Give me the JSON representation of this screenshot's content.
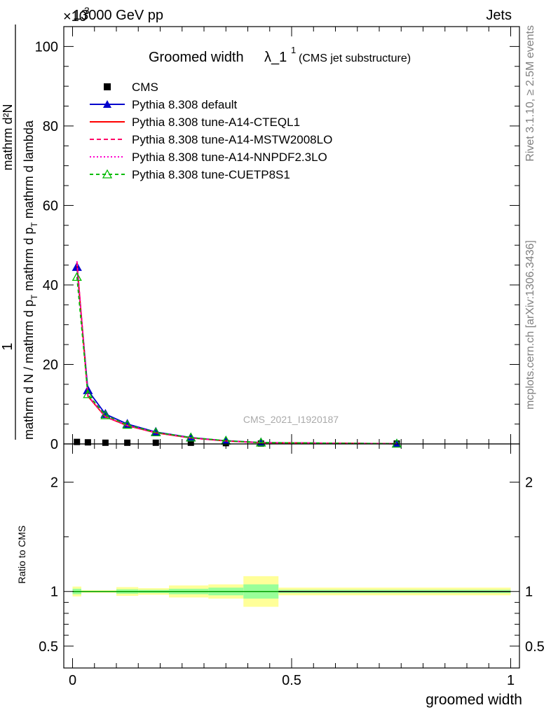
{
  "header": {
    "left": "13000 GeV pp",
    "right": "Jets",
    "exponent": "×10",
    "exponent_power": "3"
  },
  "side_labels": {
    "rivet": "Rivet 3.1.10, ≥ 2.5M events",
    "mcplots": "mcplots.cern.ch [arXiv:1306.3436]"
  },
  "watermark": "CMS_2021_I1920187",
  "colors": {
    "cms": "#000000",
    "default": "#0000cc",
    "cteql1": "#ff0000",
    "mstw": "#ff0066",
    "nnpdf": "#ff00cc",
    "cuetp8s1": "#00bb00",
    "band_inner": "#99ff99",
    "band_outer": "#ffff99"
  },
  "chart_data": [
    {
      "type": "line",
      "title": "Groomed width",
      "title_symbol": "λ_1",
      "title_sup": "1",
      "title_suffix": "(CMS jet substructure)",
      "ylabel_top": "1",
      "ylabel_num": "mathrm d²N",
      "ylabel_den_main": "mathrm d N / mathrm d p",
      "ylabel_den_sub": "T",
      "ylabel_den_rest": " mathrm d p",
      "ylabel_den_sub2": "T",
      "ylabel_den_end": " mathrm d lambda",
      "xlim": [
        -0.02,
        1.02
      ],
      "ylim": [
        0,
        105
      ],
      "y_ticks": [
        0,
        20,
        40,
        60,
        80,
        100
      ],
      "y_tick_labels": [
        "0",
        "20",
        "40",
        "60",
        "80",
        "100"
      ],
      "legend_position": "top-left",
      "x": [
        0.01,
        0.035,
        0.075,
        0.125,
        0.19,
        0.27,
        0.35,
        0.43,
        0.74
      ],
      "series": [
        {
          "name": "CMS",
          "key": "cms",
          "style": "square",
          "values": [
            0.5,
            0.4,
            0.3,
            0.3,
            0.3,
            0.3,
            0.2,
            0.1,
            0.1
          ]
        },
        {
          "name": "Pythia 8.308 default",
          "key": "default",
          "style": "triangle",
          "values": [
            44.5,
            13.5,
            7.5,
            5.0,
            3.0,
            1.6,
            0.8,
            0.35,
            0.05
          ]
        },
        {
          "name": "Pythia 8.308 tune-A14-CTEQL1",
          "key": "cteql1",
          "style": "solid",
          "values": [
            45.5,
            12.0,
            6.8,
            4.6,
            2.8,
            1.5,
            0.75,
            0.3,
            0.05
          ]
        },
        {
          "name": "Pythia 8.308 tune-A14-MSTW2008LO",
          "key": "mstw",
          "style": "dashed",
          "values": [
            45.8,
            12.1,
            6.9,
            4.6,
            2.8,
            1.5,
            0.75,
            0.3,
            0.05
          ]
        },
        {
          "name": "Pythia 8.308 tune-A14-NNPDF2.3LO",
          "key": "nnpdf",
          "style": "dotted",
          "values": [
            46.0,
            12.2,
            6.9,
            4.7,
            2.9,
            1.5,
            0.75,
            0.3,
            0.05
          ]
        },
        {
          "name": "Pythia 8.308 tune-CUETP8S1",
          "key": "cuetp8s1",
          "style": "dashed-open-triangle",
          "values": [
            42.0,
            12.5,
            7.2,
            4.8,
            2.9,
            1.6,
            0.8,
            0.33,
            0.05
          ]
        }
      ]
    },
    {
      "type": "area",
      "ylabel": "Ratio to CMS",
      "xlabel": "groomed width",
      "xlim": [
        -0.02,
        1.02
      ],
      "ylim": [
        0.3,
        2.35
      ],
      "y_ticks": [
        0.5,
        1,
        2
      ],
      "y_tick_labels": [
        "0.5",
        "1",
        "2"
      ],
      "x_ticks": [
        0,
        0.5,
        1
      ],
      "x_tick_labels": [
        "0",
        "0.5",
        "1"
      ],
      "reference": 1.0,
      "bins": [
        {
          "lo": 0.0,
          "hi": 0.02,
          "inner": 0.025,
          "outer": 0.045
        },
        {
          "lo": 0.02,
          "hi": 0.1,
          "inner": 0.006,
          "outer": 0.012
        },
        {
          "lo": 0.1,
          "hi": 0.15,
          "inner": 0.02,
          "outer": 0.04
        },
        {
          "lo": 0.15,
          "hi": 0.22,
          "inner": 0.015,
          "outer": 0.03
        },
        {
          "lo": 0.22,
          "hi": 0.31,
          "inner": 0.025,
          "outer": 0.055
        },
        {
          "lo": 0.31,
          "hi": 0.39,
          "inner": 0.035,
          "outer": 0.065
        },
        {
          "lo": 0.39,
          "hi": 0.47,
          "inner": 0.065,
          "outer": 0.14
        },
        {
          "lo": 0.47,
          "hi": 1.0,
          "inner": 0.015,
          "outer": 0.035
        }
      ]
    }
  ]
}
